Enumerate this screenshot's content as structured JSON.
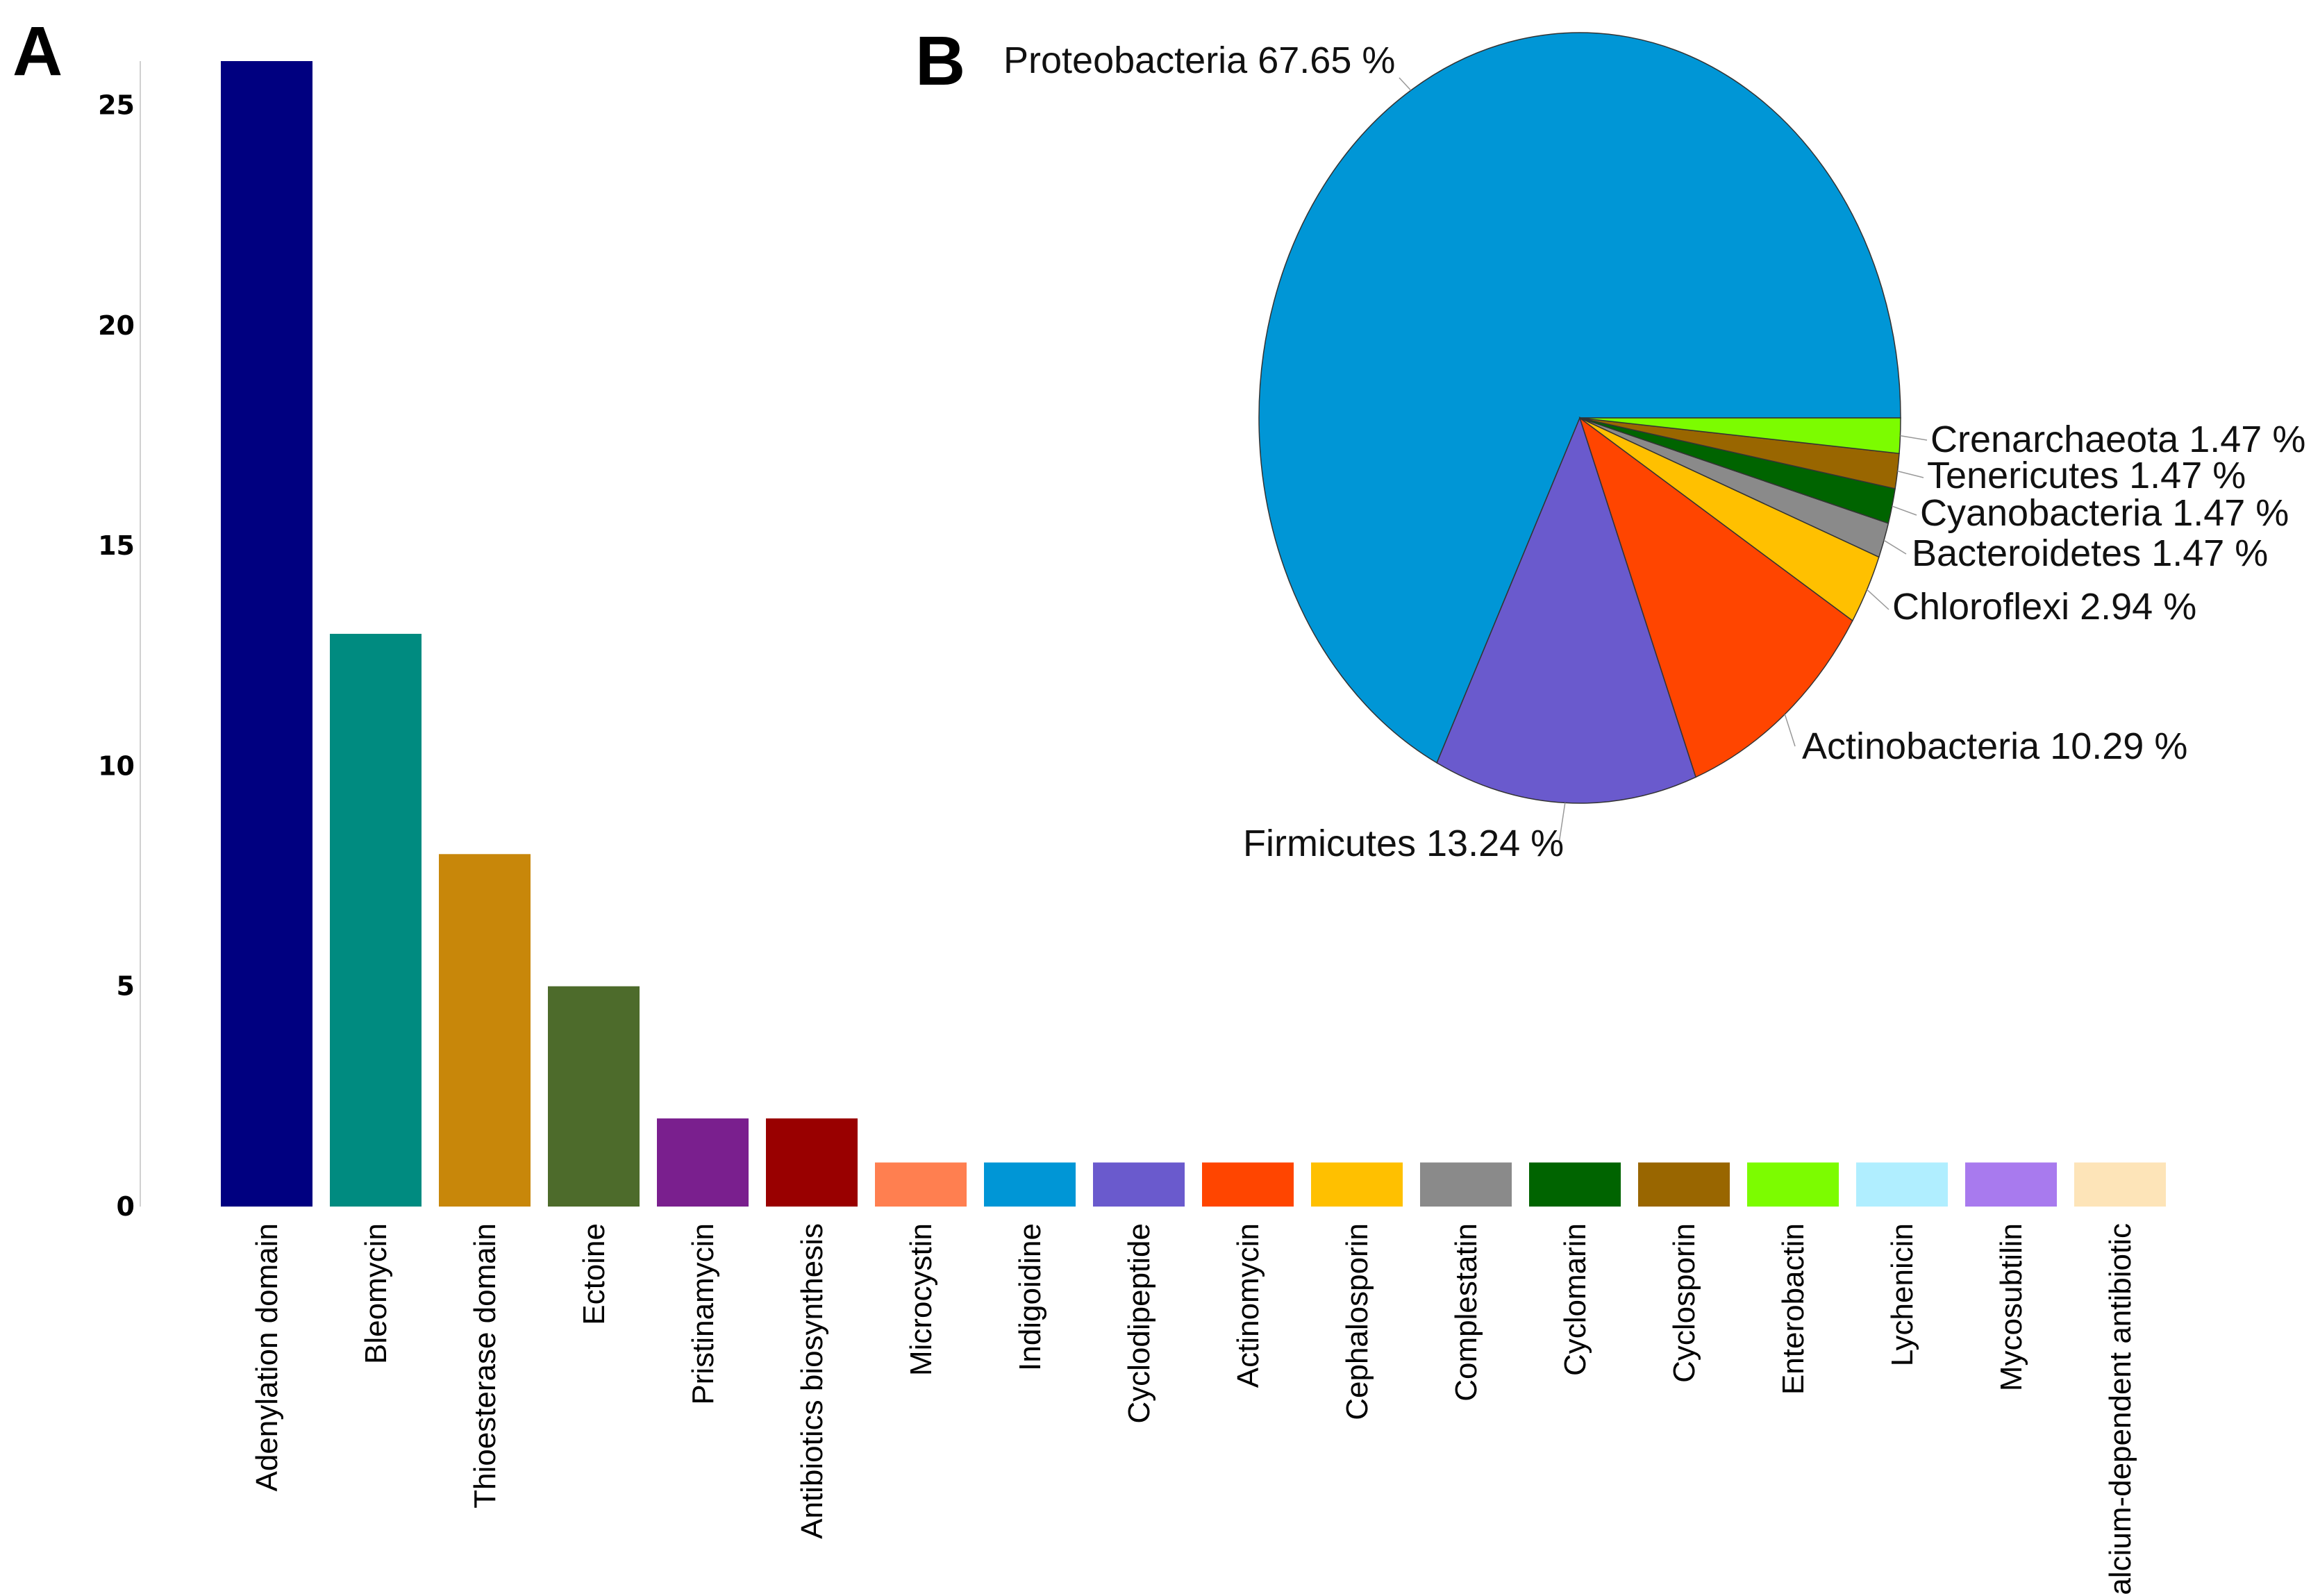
{
  "panels": {
    "a_label": "A",
    "b_label": "B"
  },
  "chart_data": [
    {
      "type": "bar",
      "title": "",
      "xlabel": "",
      "ylabel": "",
      "ylim": [
        0,
        26
      ],
      "yticks": [
        0,
        5,
        10,
        15,
        20,
        25
      ],
      "grid": false,
      "categories": [
        "Adenylation domain",
        "Bleomycin",
        "Thioesterase domain",
        "Ectoine",
        "Pristinamycin",
        "Antibiotics biosynthesis",
        "Microcystin",
        "Indigoidine",
        "Cyclodipeptide",
        "Actinomycin",
        "Cephalosporin",
        "Complestatin",
        "Cyclomarin",
        "Cyclosporin",
        "Enterobactin",
        "Lychenicin",
        "Mycosubtilin",
        "Calcium-dependent antibiotic"
      ],
      "values": [
        26,
        13,
        8,
        5,
        2,
        2,
        1,
        1,
        1,
        1,
        1,
        1,
        1,
        1,
        1,
        1,
        1,
        1
      ],
      "colors": [
        "#000080",
        "#008b80",
        "#c8870a",
        "#4d6b2b",
        "#7a1f8e",
        "#990000",
        "#ff7f50",
        "#0096d6",
        "#6a5acd",
        "#ff4500",
        "#ffc000",
        "#8a8a8a",
        "#006400",
        "#996600",
        "#7cfc00",
        "#b0eeff",
        "#a87aee",
        "#fde4b8"
      ]
    },
    {
      "type": "pie",
      "title": "",
      "slices": [
        {
          "label": "Proteobacteria 67.65 %",
          "value": 67.65,
          "color": "#0096d6"
        },
        {
          "label": "Firmicutes 13.24 %",
          "value": 13.24,
          "color": "#6a5acd"
        },
        {
          "label": "Actinobacteria 10.29 %",
          "value": 10.29,
          "color": "#ff4500"
        },
        {
          "label": "Chloroflexi 2.94 %",
          "value": 2.94,
          "color": "#ffc000"
        },
        {
          "label": "Bacteroidetes 1.47 %",
          "value": 1.47,
          "color": "#8a8a8a"
        },
        {
          "label": "Cyanobacteria 1.47 %",
          "value": 1.47,
          "color": "#006400"
        },
        {
          "label": "Tenericutes 1.47 %",
          "value": 1.47,
          "color": "#996600"
        },
        {
          "label": "Crenarchaeota 1.47 %",
          "value": 1.47,
          "color": "#7cfc00"
        }
      ]
    }
  ]
}
